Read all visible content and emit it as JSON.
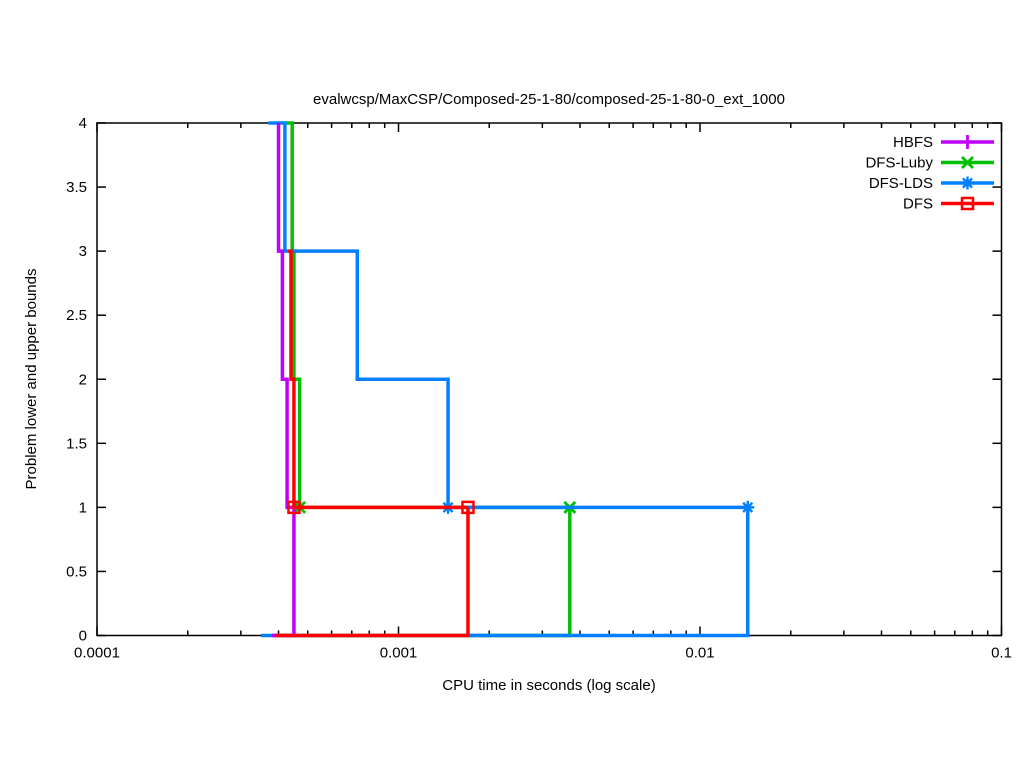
{
  "chart_data": {
    "type": "line",
    "subtype": "step-bounds-profile",
    "title": "evalwcsp/MaxCSP/Composed-25-1-80/composed-25-1-80-0_ext_1000",
    "xlabel": "CPU time in seconds (log scale)",
    "ylabel": "Problem lower and upper bounds",
    "x_scale": "log",
    "xlim": [
      0.0001,
      0.1
    ],
    "ylim": [
      0,
      4
    ],
    "grid": false,
    "legend_position": "top-right",
    "x_ticks": [
      {
        "value": 0.0001,
        "label": "0.0001"
      },
      {
        "value": 0.001,
        "label": "0.001"
      },
      {
        "value": 0.01,
        "label": "0.01"
      },
      {
        "value": 0.1,
        "label": "0.1"
      }
    ],
    "y_ticks": [
      {
        "value": 0,
        "label": "0"
      },
      {
        "value": 0.5,
        "label": "0.5"
      },
      {
        "value": 1,
        "label": "1"
      },
      {
        "value": 1.5,
        "label": "1.5"
      },
      {
        "value": 2,
        "label": "2"
      },
      {
        "value": 2.5,
        "label": "2.5"
      },
      {
        "value": 3,
        "label": "3"
      },
      {
        "value": 3.5,
        "label": "3.5"
      },
      {
        "value": 4,
        "label": "4"
      }
    ],
    "series": [
      {
        "name": "HBFS",
        "color": "#c000ff",
        "marker": "plus",
        "upper_bound_steps": [
          [
            0.0004,
            4
          ],
          [
            0.0004,
            3
          ],
          [
            0.000412,
            2
          ],
          [
            0.000427,
            1
          ]
        ],
        "lower_bound_start": 0.00038,
        "lower_bound_proof_time": 0.00045,
        "end_time": 0.00045,
        "markers_at": [
          [
            0.00045,
            1
          ]
        ]
      },
      {
        "name": "DFS-Luby",
        "color": "#00c000",
        "marker": "cross",
        "upper_bound_steps": [
          [
            0.00041,
            4
          ],
          [
            0.000444,
            3
          ],
          [
            0.00045,
            2
          ],
          [
            0.00047,
            1
          ]
        ],
        "lower_bound_start": 0.000405,
        "lower_bound_proof_time": 0.0037,
        "end_time": 0.0037,
        "markers_at": [
          [
            0.00047,
            1
          ],
          [
            0.0037,
            1
          ]
        ]
      },
      {
        "name": "DFS-LDS",
        "color": "#0080ff",
        "marker": "star",
        "upper_bound_steps": [
          [
            0.00037,
            4
          ],
          [
            0.00042,
            3
          ],
          [
            0.00073,
            2
          ],
          [
            0.00146,
            1
          ]
        ],
        "lower_bound_start": 0.00035,
        "lower_bound_proof_time": 0.0144,
        "end_time": 0.0144,
        "markers_at": [
          [
            0.00146,
            1
          ],
          [
            0.0144,
            1
          ]
        ]
      },
      {
        "name": "DFS",
        "color": "#ff0000",
        "marker": "square",
        "upper_bound_steps": [
          [
            0.00043,
            3
          ],
          [
            0.00044,
            2
          ],
          [
            0.00045,
            1
          ]
        ],
        "lower_bound_start": 0.00039,
        "lower_bound_proof_time": 0.0017,
        "end_time": 0.0017,
        "markers_at": [
          [
            0.00045,
            1
          ],
          [
            0.0017,
            1
          ]
        ]
      }
    ],
    "legend_order": [
      "HBFS",
      "DFS-Luby",
      "DFS-LDS",
      "DFS"
    ],
    "draw_order": [
      "DFS-Luby",
      "DFS-LDS",
      "HBFS",
      "DFS"
    ]
  }
}
